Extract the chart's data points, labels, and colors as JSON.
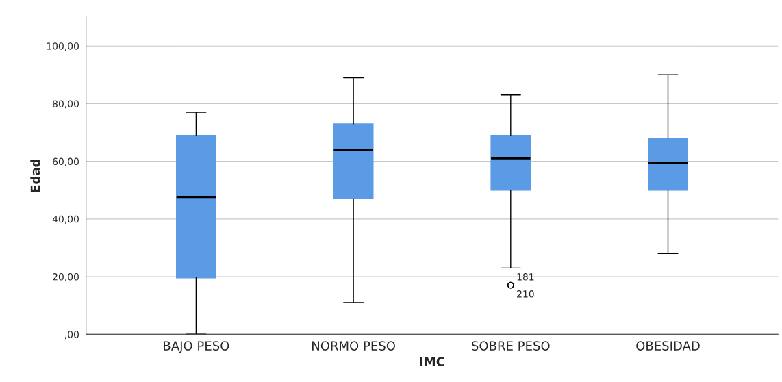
{
  "chart_data": {
    "type": "box",
    "xlabel": "IMC",
    "ylabel": "Edad",
    "categories": [
      "BAJO PESO",
      "NORMO PESO",
      "SOBRE PESO",
      "OBESIDAD"
    ],
    "color": "#5b9be6",
    "boxes": [
      {
        "low": 0,
        "q1": 19.6,
        "median": 47.6,
        "q3": 69,
        "high": 77
      },
      {
        "low": 11,
        "q1": 47,
        "median": 64,
        "q3": 73,
        "high": 89
      },
      {
        "low": 23,
        "q1": 50,
        "median": 61,
        "q3": 69,
        "high": 83,
        "outliers": [
          17,
          17
        ]
      },
      {
        "low": 28,
        "q1": 50,
        "median": 59.5,
        "q3": 68,
        "high": 90
      }
    ],
    "annotations": [
      "181",
      "210"
    ],
    "ylim": [
      0,
      110
    ],
    "yticks": [
      {
        "value": 0,
        "label": ",00"
      },
      {
        "value": 20,
        "label": "20,00"
      },
      {
        "value": 40,
        "label": "40,00"
      },
      {
        "value": 60,
        "label": "60,00"
      },
      {
        "value": 80,
        "label": "80,00"
      },
      {
        "value": 100,
        "label": "100,00"
      }
    ],
    "grid": "y"
  }
}
